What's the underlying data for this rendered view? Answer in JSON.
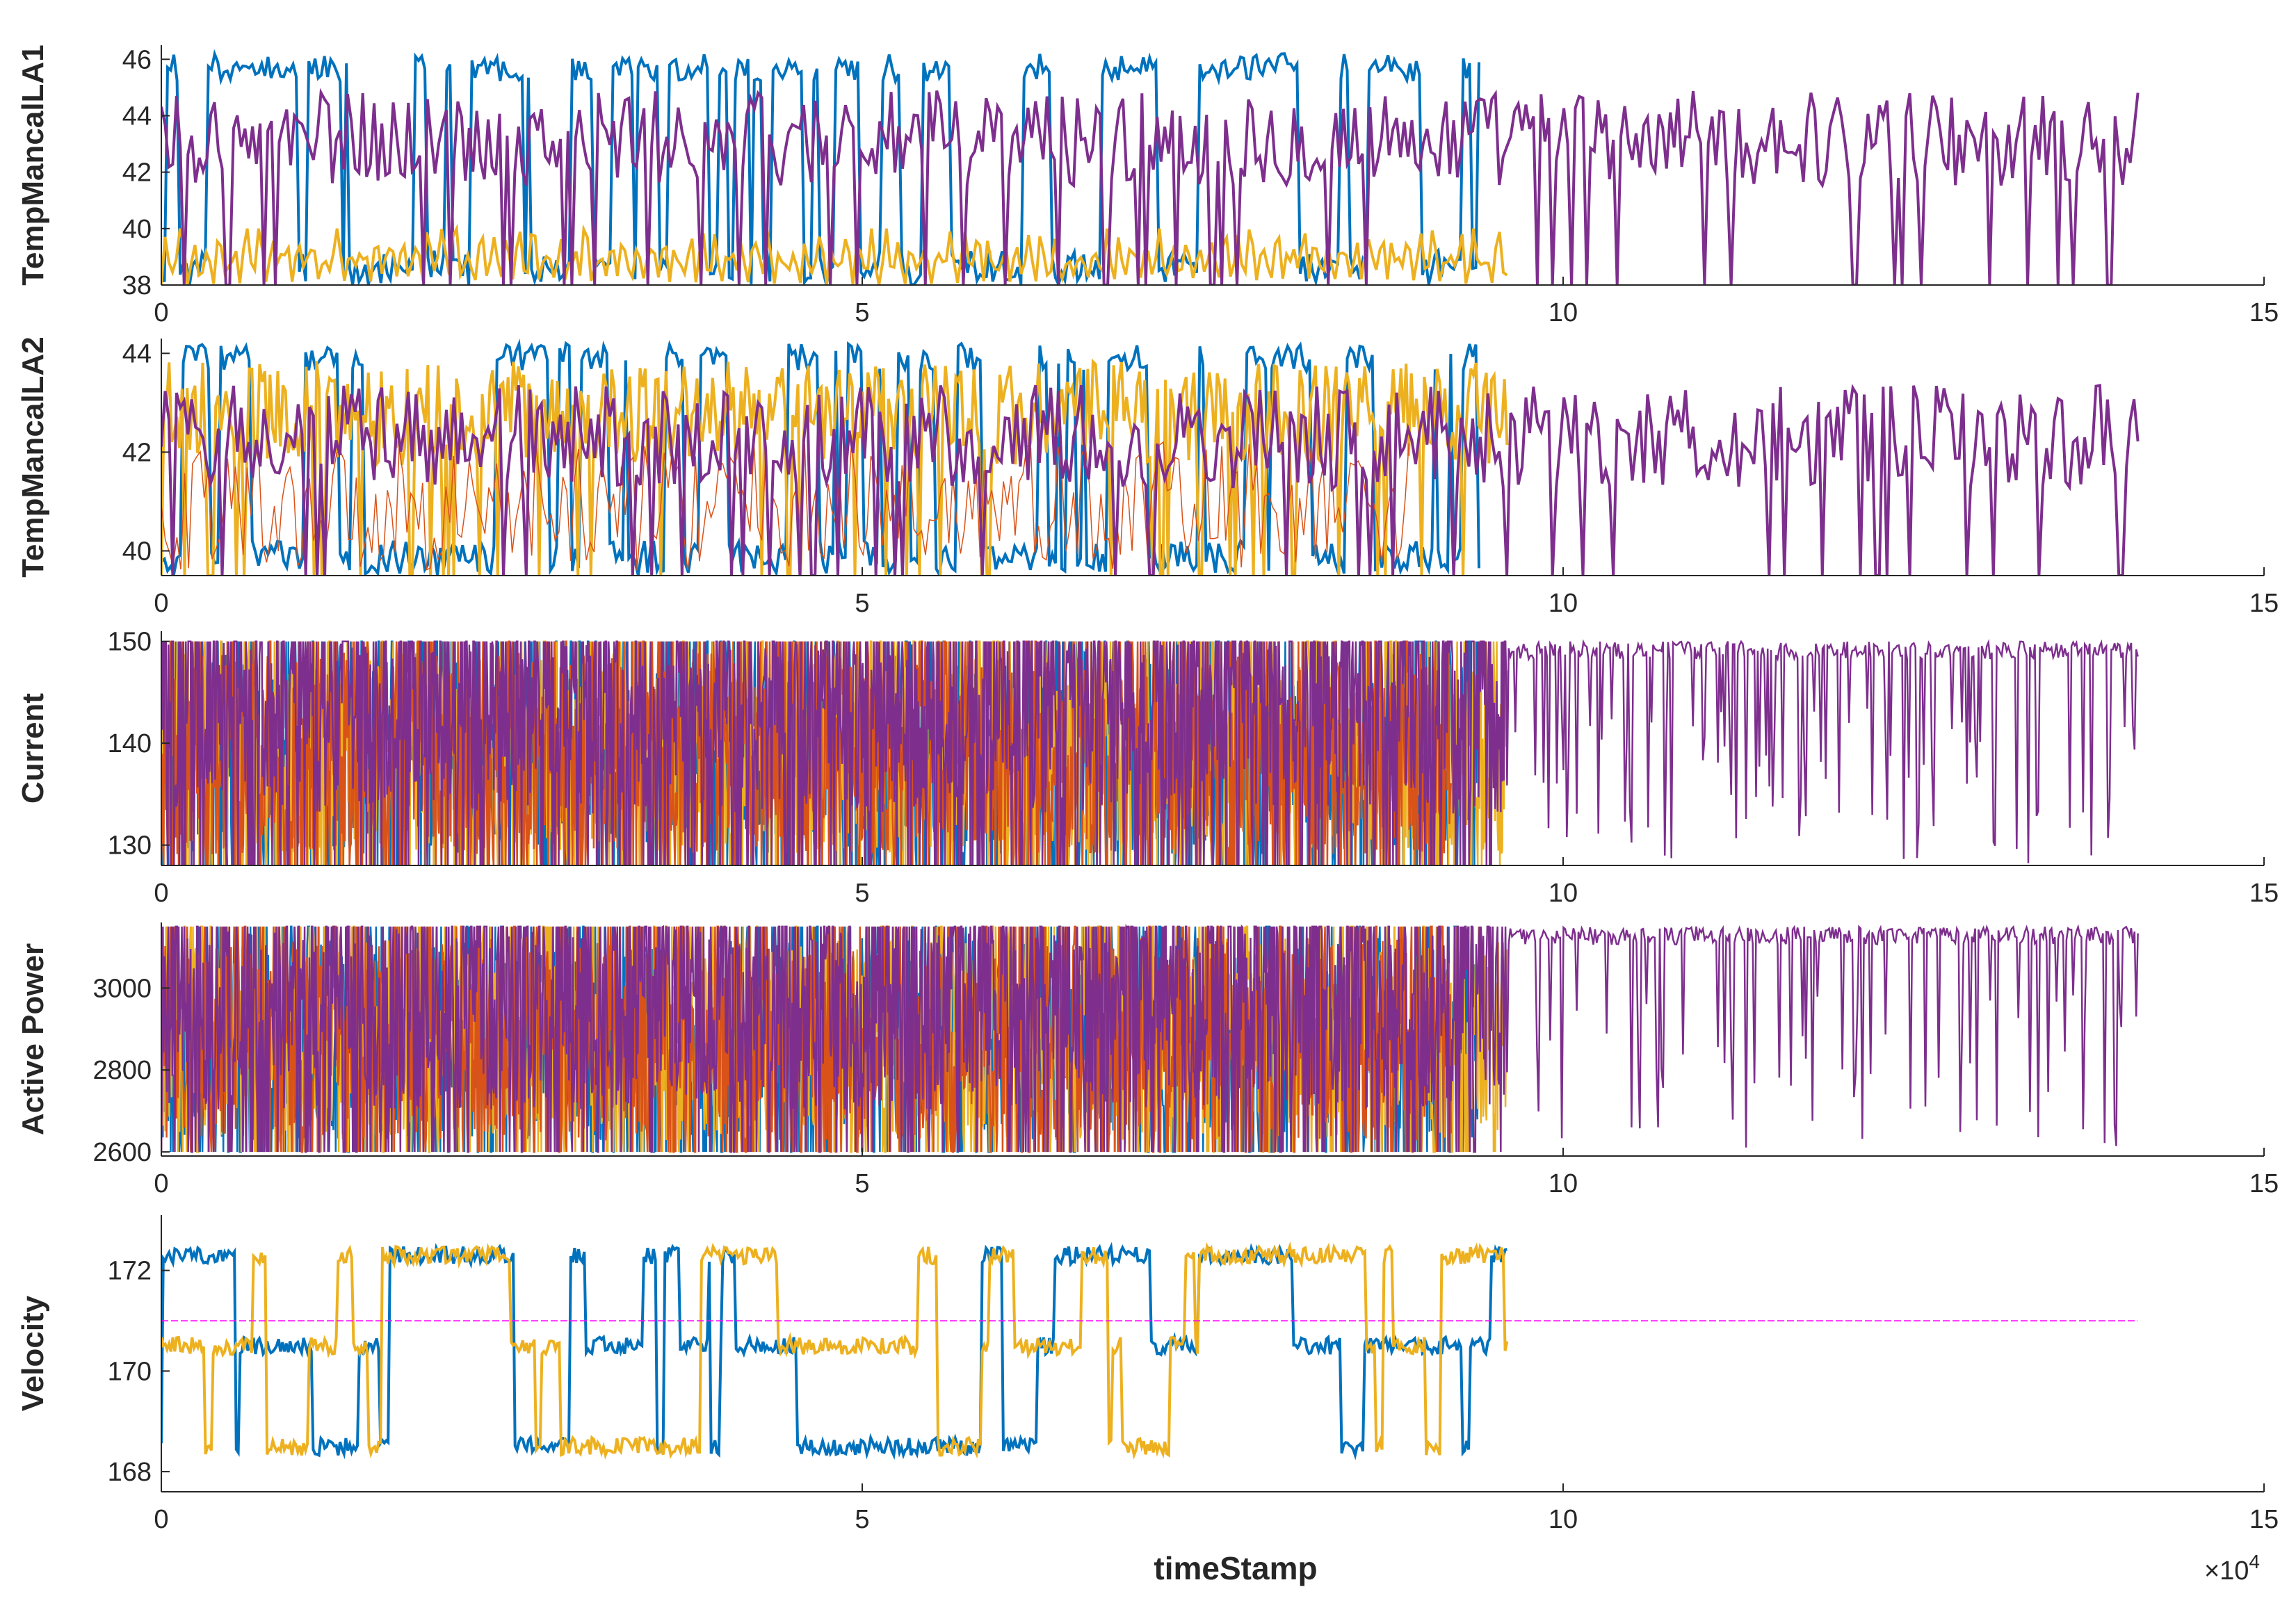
{
  "chart_data": [
    {
      "type": "line",
      "ylabel": "TempMancalLA1",
      "xlabel": "",
      "xlim": [
        0,
        15
      ],
      "ylim": [
        38,
        46.5
      ],
      "xticks": [
        0,
        5,
        10,
        15
      ],
      "yticks": [
        38,
        40,
        42,
        44,
        46
      ],
      "series": [
        {
          "color": "#0072BD",
          "x_end": 9.4,
          "level_high": 46.2,
          "level_low": 38.0,
          "behavior": "switching"
        },
        {
          "color": "#EDB120",
          "x_end": 9.6,
          "level_high": 40.0,
          "level_low": 38.0,
          "behavior": "oscillating"
        },
        {
          "color": "#7E2F8E",
          "x_end": 14.1,
          "level_high": 45.5,
          "level_low": 38.0,
          "mean": 43.2,
          "behavior": "noisy"
        }
      ]
    },
    {
      "type": "line",
      "ylabel": "TempMancalLA2",
      "xlabel": "",
      "xlim": [
        0,
        15
      ],
      "ylim": [
        39.5,
        44.3
      ],
      "xticks": [
        0,
        5,
        10,
        15
      ],
      "yticks": [
        40,
        42,
        44
      ],
      "series": [
        {
          "color": "#0072BD",
          "x_end": 9.4,
          "level_high": 44.2,
          "level_low": 39.5,
          "behavior": "switching"
        },
        {
          "color": "#EDB120",
          "x_end": 9.6,
          "level_high": 44.2,
          "level_low": 39.5,
          "mean": 42.8,
          "behavior": "noisy"
        },
        {
          "color": "#D95319",
          "x_end": 8.9,
          "level_high": 42.5,
          "level_low": 39.6,
          "behavior": "thin"
        },
        {
          "color": "#7E2F8E",
          "x_end": 14.1,
          "level_high": 44.2,
          "level_low": 39.5,
          "mean": 42.3,
          "behavior": "noisy"
        }
      ]
    },
    {
      "type": "line",
      "ylabel": "Current",
      "xlabel": "",
      "xlim": [
        0,
        15
      ],
      "ylim": [
        128,
        151
      ],
      "xticks": [
        0,
        5,
        10,
        15
      ],
      "yticks": [
        130,
        140,
        150
      ],
      "series": [
        {
          "color": "#0072BD",
          "x_end": 9.4,
          "level_high": 150,
          "level_low": 128,
          "behavior": "dense"
        },
        {
          "color": "#EDB120",
          "x_end": 9.6,
          "level_high": 150,
          "level_low": 128,
          "behavior": "dense"
        },
        {
          "color": "#D95319",
          "x_end": 9.2,
          "level_high": 150,
          "level_low": 128,
          "behavior": "dense"
        },
        {
          "color": "#7E2F8E",
          "x_end": 14.1,
          "level_high": 150,
          "level_low": 128,
          "mean": 143,
          "behavior": "dense-then-plateau"
        }
      ]
    },
    {
      "type": "line",
      "ylabel": "Active Power",
      "xlabel": "",
      "xlim": [
        0,
        15
      ],
      "ylim": [
        2590,
        3160
      ],
      "xticks": [
        0,
        5,
        10,
        15
      ],
      "yticks": [
        2600,
        2800,
        3000
      ],
      "series": [
        {
          "color": "#0072BD",
          "x_end": 9.4,
          "level_high": 3150,
          "level_low": 2600,
          "behavior": "dense"
        },
        {
          "color": "#EDB120",
          "x_end": 9.6,
          "level_high": 3150,
          "level_low": 2600,
          "behavior": "dense"
        },
        {
          "color": "#D95319",
          "x_end": 9.2,
          "level_high": 3150,
          "level_low": 2600,
          "behavior": "dense"
        },
        {
          "color": "#7E2F8E",
          "x_end": 14.1,
          "level_high": 3150,
          "level_low": 2600,
          "mean": 2950,
          "behavior": "dense-then-plateau"
        }
      ]
    },
    {
      "type": "line",
      "ylabel": "Velocity",
      "xlabel": "timeStamp",
      "x_multiplier": "×10",
      "x_multiplier_exp": "4",
      "xlim": [
        0,
        15
      ],
      "ylim": [
        167.6,
        173.1
      ],
      "xticks": [
        0,
        5,
        10,
        15
      ],
      "yticks": [
        168,
        170,
        172
      ],
      "series": [
        {
          "color": "#0072BD",
          "x_end": 9.6,
          "levels": [
            168.5,
            170.5,
            172.3
          ],
          "behavior": "switching"
        },
        {
          "color": "#EDB120",
          "x_end": 9.6,
          "levels": [
            168.5,
            170.5,
            172.3
          ],
          "behavior": "switching"
        },
        {
          "color": "#FF00FF",
          "x_start": 0,
          "x_end": 14.1,
          "constant": 171.0,
          "behavior": "reference-line"
        }
      ]
    }
  ]
}
